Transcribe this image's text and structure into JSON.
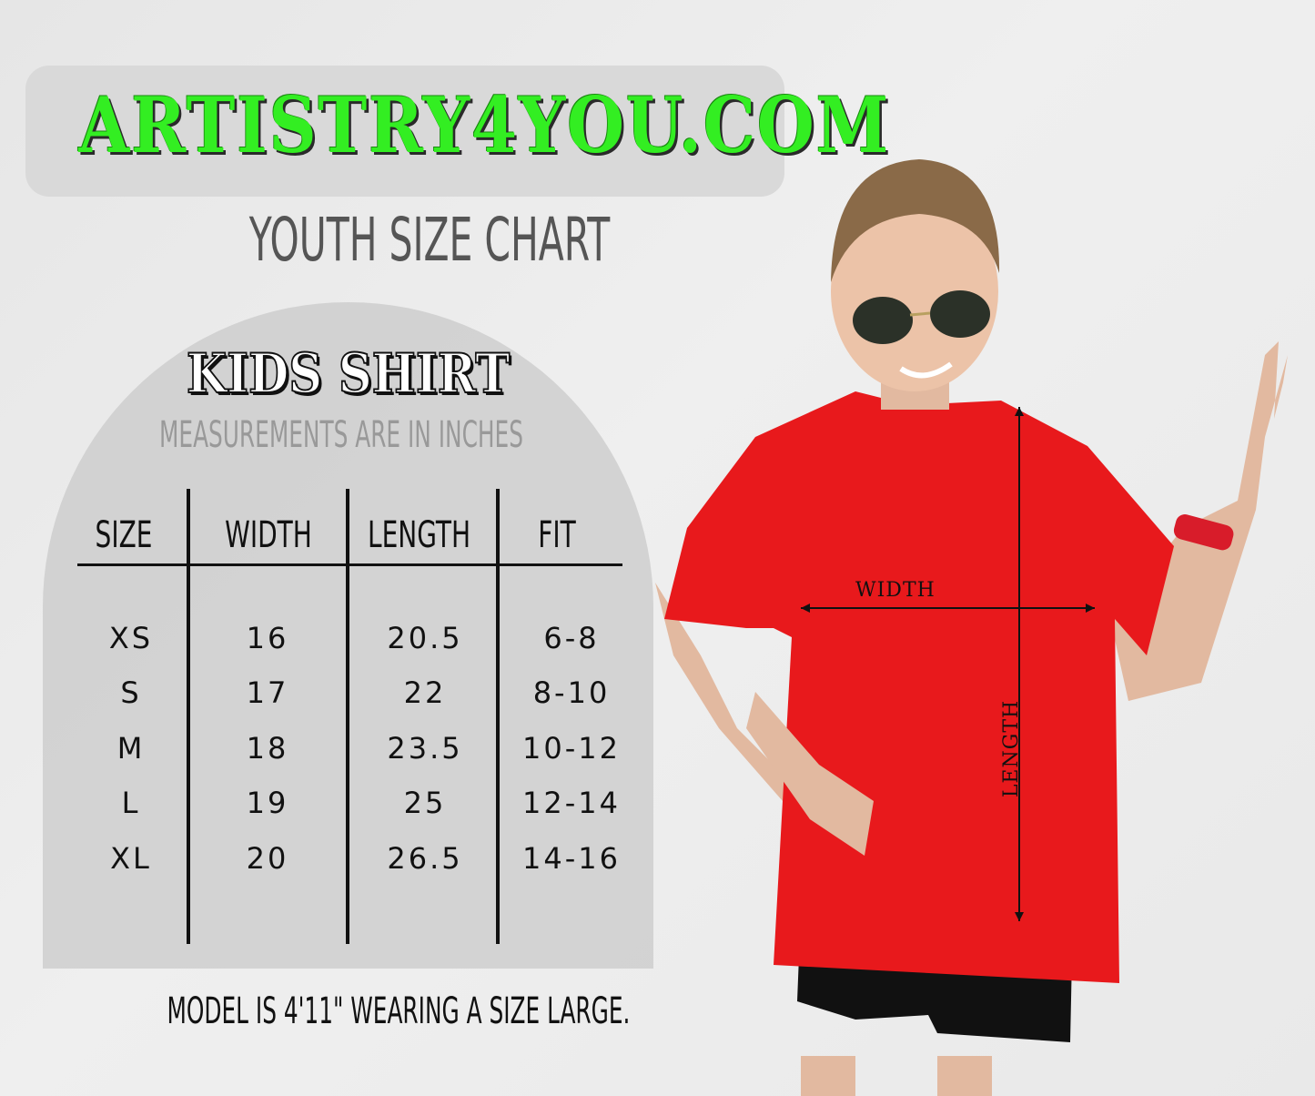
{
  "logo": {
    "text": "ARTISTRY4YOU.COM",
    "color": "#33ee22"
  },
  "title": "YOUTH SIZE CHART",
  "panel": {
    "heading": "KIDS SHIRT",
    "subheading": "MEASUREMENTS ARE IN INCHES",
    "table": {
      "headers": [
        "SIZE",
        "WIDTH",
        "LENGTH",
        "FIT"
      ],
      "rows": [
        [
          "XS",
          "16",
          "20.5",
          "6-8"
        ],
        [
          "S",
          "17",
          "22",
          "8-10"
        ],
        [
          "M",
          "18",
          "23.5",
          "10-12"
        ],
        [
          "L",
          "19",
          "25",
          "12-14"
        ],
        [
          "XL",
          "20",
          "26.5",
          "14-16"
        ]
      ]
    }
  },
  "footer": "MODEL IS 4'11\" WEARING A SIZE LARGE.",
  "photo": {
    "width_label": "WIDTH",
    "length_label": "LENGTH",
    "shirt_color": "#e8191c"
  }
}
